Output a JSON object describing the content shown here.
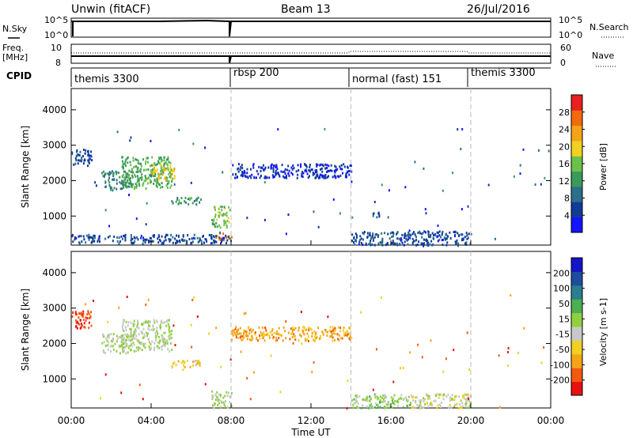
{
  "header": {
    "station": "Unwin (fitACF)",
    "beam": "Beam 13",
    "date": "26/Jul/2016"
  },
  "top_panels": {
    "nsky_label": "N.Sky",
    "nsky_ticks": [
      "10^5",
      "10^0"
    ],
    "nsearch_label": "N.Search",
    "nsearch_ticks": [
      "10^5",
      "10^0"
    ],
    "freq_label": "Freq.",
    "freq_unit": "[MHz]",
    "freq_ticks": [
      "10",
      "8"
    ],
    "nave_label": "Nave",
    "nave_ticks": [
      "60",
      "0"
    ],
    "cpid_label": "CPID"
  },
  "cpid_segments": [
    {
      "label": "themis 3300",
      "start": 0,
      "end": 8
    },
    {
      "label": "rbsp 200",
      "start": 8,
      "end": 14
    },
    {
      "label": "normal (fast) 151",
      "start": 14,
      "end": 20
    },
    {
      "label": "themis 3300",
      "start": 20,
      "end": 24
    }
  ],
  "chart_data": [
    {
      "type": "heatmap",
      "title": "Power",
      "xlabel": "Time UT",
      "ylabel": "Slant Range [km]",
      "xlim": [
        0,
        24
      ],
      "ylim": [
        180,
        4600
      ],
      "x_tick_labels": [
        "00:00",
        "04:00",
        "08:00",
        "12:00",
        "16:00",
        "20:00",
        "00:00"
      ],
      "y_ticks": [
        1000,
        2000,
        3000,
        4000
      ],
      "colorbar": {
        "label": "Power [dB]",
        "range": [
          0,
          32
        ],
        "ticks": [
          4,
          8,
          12,
          16,
          20,
          24,
          28
        ],
        "colors": [
          "#1414ff",
          "#0f3c96",
          "#2c6e8c",
          "#3a9a5a",
          "#6bc04a",
          "#f0d020",
          "#f6a318",
          "#f26a0c",
          "#e82020"
        ]
      },
      "regions": [
        {
          "t": [
            0.0,
            1.0
          ],
          "range": [
            2450,
            2950
          ],
          "value": 6
        },
        {
          "t": [
            1.5,
            3.0
          ],
          "range": [
            1750,
            2300
          ],
          "value": 10
        },
        {
          "t": [
            2.5,
            5.0
          ],
          "range": [
            1800,
            2700
          ],
          "value": 14
        },
        {
          "t": [
            4.0,
            5.2
          ],
          "range": [
            2050,
            2500
          ],
          "value": 20
        },
        {
          "t": [
            5.0,
            6.5
          ],
          "range": [
            1350,
            1550
          ],
          "value": 12
        },
        {
          "t": [
            7.0,
            7.9
          ],
          "range": [
            700,
            1300
          ],
          "value": 16
        },
        {
          "t": [
            7.2,
            8.0
          ],
          "range": [
            350,
            550
          ],
          "value": 26
        },
        {
          "t": [
            0.0,
            8.0
          ],
          "range": [
            250,
            500
          ],
          "value": 6
        },
        {
          "t": [
            8.0,
            14.0
          ],
          "range": [
            2100,
            2500
          ],
          "value": 4
        },
        {
          "t": [
            14.0,
            20.0
          ],
          "range": [
            200,
            600
          ],
          "value": 6
        },
        {
          "t": [
            15.0,
            15.4
          ],
          "range": [
            950,
            1150
          ],
          "value": 6
        }
      ]
    },
    {
      "type": "heatmap",
      "title": "Velocity",
      "xlabel": "Time UT",
      "ylabel": "Slant Range [km]",
      "xlim": [
        0,
        24
      ],
      "ylim": [
        180,
        4600
      ],
      "x_tick_labels": [
        "00:00",
        "04:00",
        "08:00",
        "12:00",
        "16:00",
        "20:00",
        "00:00"
      ],
      "y_ticks": [
        1000,
        2000,
        3000,
        4000
      ],
      "colorbar": {
        "label": "Velocity [m s-1]",
        "range": [
          -250,
          250
        ],
        "ticks": [
          200,
          100,
          50,
          15,
          -15,
          -50,
          -100,
          -200
        ],
        "colors": [
          "#e81010",
          "#f25a10",
          "#f6a318",
          "#f0d020",
          "#c8c8c8",
          "#8fd040",
          "#4caf50",
          "#2a7e8e",
          "#1f4ca0",
          "#1414c8"
        ]
      },
      "regions": [
        {
          "t": [
            0.0,
            1.0
          ],
          "range": [
            2450,
            2950
          ],
          "value": -200
        },
        {
          "t": [
            1.5,
            3.0
          ],
          "range": [
            1750,
            2300
          ],
          "value": 0
        },
        {
          "t": [
            2.5,
            5.0
          ],
          "range": [
            1800,
            2700
          ],
          "value": 0
        },
        {
          "t": [
            5.0,
            6.5
          ],
          "range": [
            1350,
            1550
          ],
          "value": -80
        },
        {
          "t": [
            7.0,
            8.0
          ],
          "range": [
            200,
            700
          ],
          "value": 0
        },
        {
          "t": [
            8.0,
            14.0
          ],
          "range": [
            2100,
            2500
          ],
          "value": -120
        },
        {
          "t": [
            14.0,
            17.0
          ],
          "range": [
            200,
            600
          ],
          "value": 20
        },
        {
          "t": [
            17.0,
            20.0
          ],
          "range": [
            200,
            600
          ],
          "value": -25
        }
      ]
    }
  ]
}
